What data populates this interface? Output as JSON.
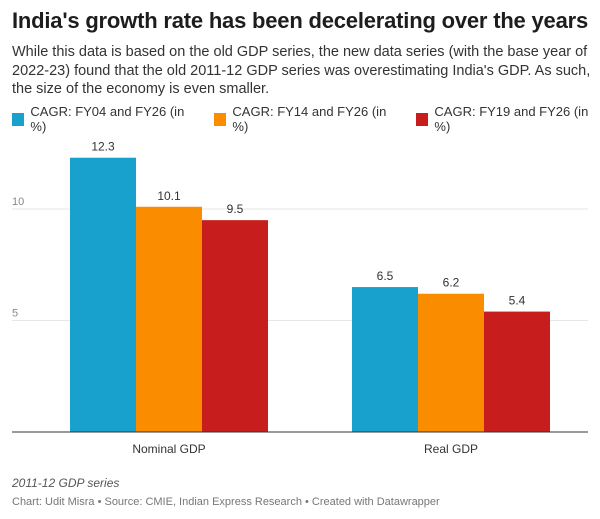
{
  "title": "India's growth rate has been decelerating over the years",
  "subtitle": "While this data is based on the old GDP series, the new data series (with the base year of 2022-23) found that the old 2011-12 GDP series was overestimating India's GDP. As such, the size of the economy is even smaller.",
  "notes": "2011-12 GDP series",
  "footer": "Chart: Udit Misra • Source: CMIE, Indian Express Research • Created with Datawrapper",
  "chart_data": {
    "type": "bar",
    "categories": [
      "Nominal GDP",
      "Real GDP"
    ],
    "series": [
      {
        "name": "CAGR: FY04 and FY26 (in %)",
        "color": "#18a1cd",
        "values": [
          12.3,
          6.5
        ]
      },
      {
        "name": "CAGR: FY14 and FY26 (in %)",
        "color": "#fa8c00",
        "values": [
          10.1,
          6.2
        ]
      },
      {
        "name": "CAGR: FY19 and FY26 (in %)",
        "color": "#c71e1d",
        "values": [
          9.5,
          5.4
        ]
      }
    ],
    "yticks": [
      5,
      10
    ],
    "ylim": [
      0,
      13
    ]
  }
}
